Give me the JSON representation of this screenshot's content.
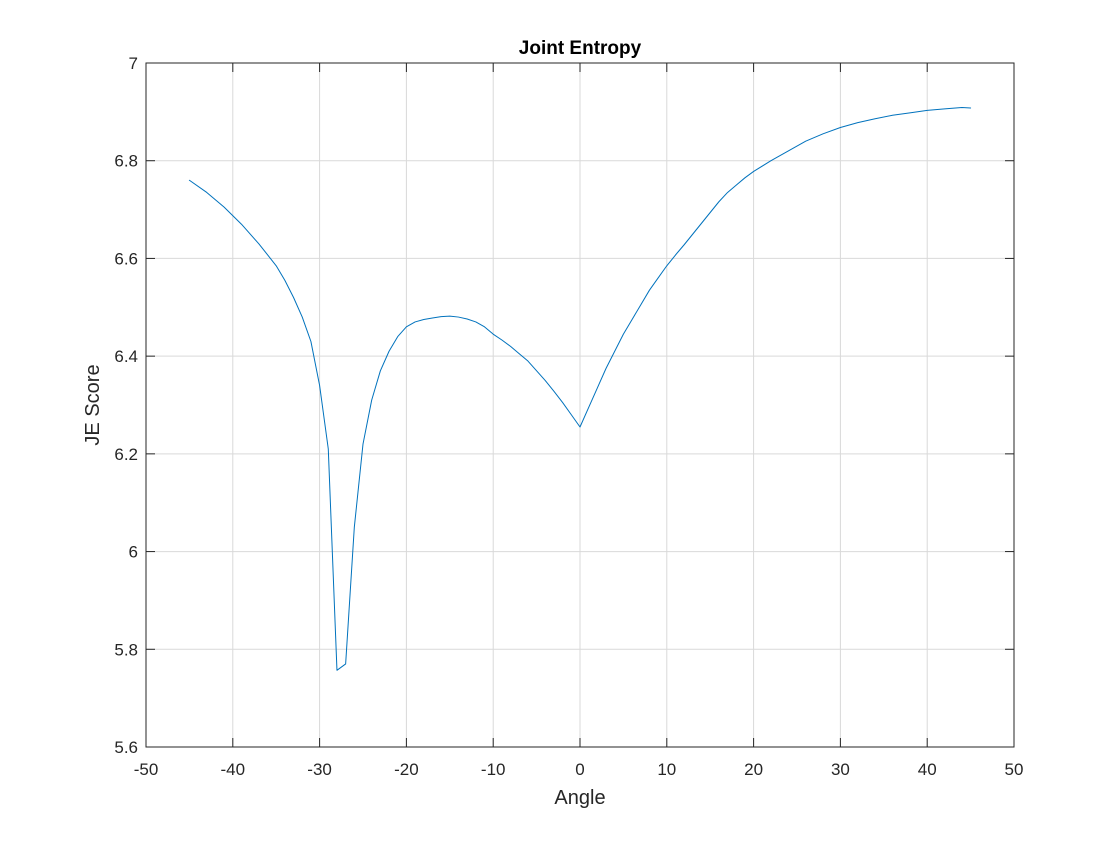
{
  "chart_data": {
    "type": "line",
    "title": "Joint Entropy",
    "xlabel": "Angle",
    "ylabel": "JE Score",
    "xlim": [
      -50,
      50
    ],
    "ylim": [
      5.6,
      7.0
    ],
    "xticks": [
      -50,
      -40,
      -30,
      -20,
      -10,
      0,
      10,
      20,
      30,
      40,
      50
    ],
    "yticks": [
      5.6,
      5.8,
      6.0,
      6.2,
      6.4,
      6.6,
      6.8,
      7.0
    ],
    "xtick_labels": [
      "-50",
      "-40",
      "-30",
      "-20",
      "-10",
      "0",
      "10",
      "20",
      "30",
      "40",
      "50"
    ],
    "ytick_labels": [
      "5.6",
      "5.8",
      "6",
      "6.2",
      "6.4",
      "6.6",
      "6.8",
      "7"
    ],
    "grid": true,
    "line_color": "#0072BD",
    "series": [
      {
        "x": [
          -45,
          -43,
          -41,
          -39,
          -37,
          -35,
          -34,
          -33,
          -32,
          -31,
          -30,
          -29,
          -28,
          -27,
          -26,
          -25,
          -24,
          -23,
          -22,
          -21,
          -20,
          -19,
          -18,
          -17,
          -16,
          -15,
          -14,
          -13,
          -12,
          -11,
          -10,
          -9,
          -8,
          -7,
          -6,
          -5,
          -4,
          -3,
          -2,
          -1,
          0,
          1,
          2,
          3,
          4,
          5,
          6,
          7,
          8,
          9,
          10,
          11,
          12,
          13,
          14,
          15,
          16,
          17,
          18,
          19,
          20,
          22,
          24,
          26,
          28,
          30,
          32,
          34,
          36,
          38,
          40,
          42,
          44,
          45
        ],
        "y": [
          6.76,
          6.735,
          6.705,
          6.67,
          6.63,
          6.585,
          6.555,
          6.52,
          6.48,
          6.43,
          6.34,
          6.21,
          5.757,
          5.77,
          6.05,
          6.22,
          6.31,
          6.37,
          6.41,
          6.44,
          6.46,
          6.47,
          6.475,
          6.478,
          6.481,
          6.482,
          6.48,
          6.476,
          6.47,
          6.46,
          6.445,
          6.433,
          6.42,
          6.405,
          6.39,
          6.37,
          6.35,
          6.328,
          6.305,
          6.28,
          6.255,
          6.295,
          6.335,
          6.375,
          6.41,
          6.445,
          6.475,
          6.505,
          6.535,
          6.56,
          6.585,
          6.607,
          6.628,
          6.65,
          6.672,
          6.694,
          6.716,
          6.735,
          6.75,
          6.765,
          6.778,
          6.8,
          6.82,
          6.84,
          6.855,
          6.868,
          6.878,
          6.886,
          6.893,
          6.898,
          6.903,
          6.906,
          6.909,
          6.908
        ]
      }
    ]
  }
}
